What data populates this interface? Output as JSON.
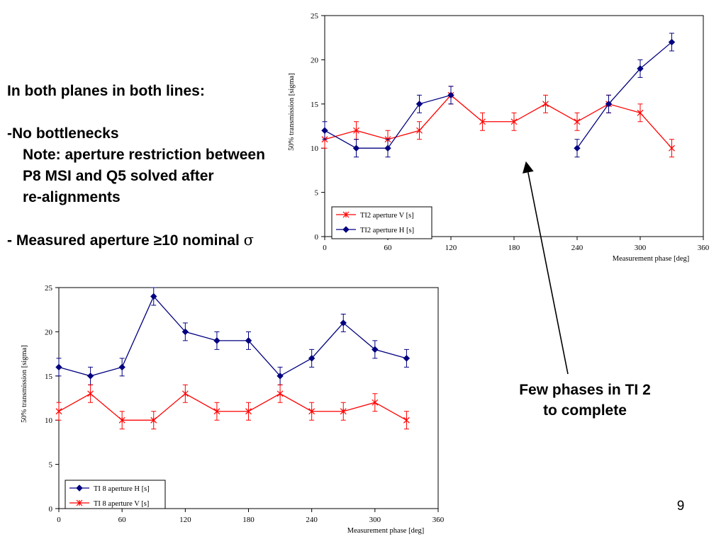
{
  "slide": {
    "bullets": {
      "heading": "In both planes in both lines:",
      "item1_dash": "-",
      "item1": "No bottlenecks",
      "note_line1": "Note: aperture restriction between",
      "note_line2": "P8 MSI and Q5 solved after",
      "note_line3": "re-alignments",
      "item2_prefix": "- Measured aperture ≥10 nominal ",
      "item2_symbol": "σ"
    },
    "callout": {
      "line1": "Few phases in TI 2",
      "line2": "to complete"
    },
    "page_number": "9"
  },
  "chart_data": [
    {
      "type": "line",
      "name": "ti2-chart",
      "xlabel": "Measurement phase [deg]",
      "ylabel": "50% transmission [sigma]",
      "xlim": [
        0,
        360
      ],
      "ylim": [
        0,
        25
      ],
      "xticks": [
        0,
        60,
        120,
        180,
        240,
        300,
        360
      ],
      "yticks": [
        0,
        5,
        10,
        15,
        20,
        25
      ],
      "grid": false,
      "legend_position": "bottom-left",
      "series": [
        {
          "name": "TI2 aperture V [s]",
          "color": "#ff0000",
          "marker": "star",
          "x": [
            0,
            30,
            60,
            90,
            120,
            150,
            180,
            210,
            240,
            270,
            300,
            330
          ],
          "y": [
            11,
            12,
            11,
            12,
            16,
            13,
            13,
            15,
            13,
            15,
            14,
            10
          ],
          "error": 1
        },
        {
          "name": "TI2 aperture H [s]",
          "color": "#000080",
          "marker": "diamond",
          "segments": [
            {
              "x": [
                0,
                30,
                60,
                90,
                120
              ],
              "y": [
                12,
                10,
                10,
                15,
                16
              ]
            },
            {
              "x": [
                240,
                270,
                300,
                330
              ],
              "y": [
                10,
                15,
                19,
                22
              ]
            }
          ],
          "error": 1
        }
      ]
    },
    {
      "type": "line",
      "name": "ti8-chart",
      "xlabel": "Measurement phase [deg]",
      "ylabel": "50% transmission [sigma]",
      "xlim": [
        0,
        360
      ],
      "ylim": [
        0,
        25
      ],
      "xticks": [
        0,
        60,
        120,
        180,
        240,
        300,
        360
      ],
      "yticks": [
        0,
        5,
        10,
        15,
        20,
        25
      ],
      "grid": false,
      "legend_position": "bottom-left",
      "series": [
        {
          "name": "TI 8 aperture H [s]",
          "color": "#000080",
          "marker": "diamond",
          "x": [
            0,
            30,
            60,
            90,
            120,
            150,
            180,
            210,
            240,
            270,
            300,
            330
          ],
          "y": [
            16,
            15,
            16,
            24,
            20,
            19,
            19,
            15,
            17,
            21,
            18,
            17
          ],
          "error": 1
        },
        {
          "name": "TI 8 aperture V [s]",
          "color": "#ff0000",
          "marker": "star",
          "x": [
            0,
            30,
            60,
            90,
            120,
            150,
            180,
            210,
            240,
            270,
            300,
            330
          ],
          "y": [
            11,
            13,
            10,
            10,
            13,
            11,
            11,
            13,
            11,
            11,
            12,
            10
          ],
          "error": 1
        }
      ]
    }
  ]
}
